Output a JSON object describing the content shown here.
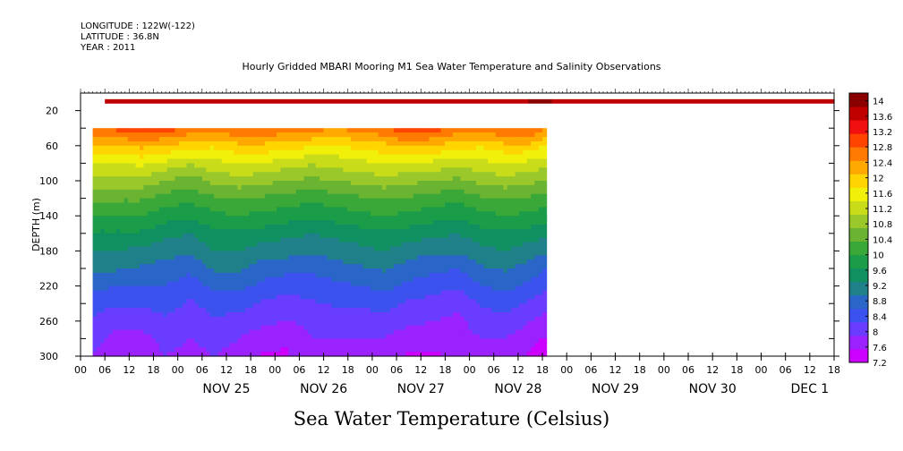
{
  "header": {
    "longitude": "LONGITUDE : 122W(-122)",
    "latitude": "LATITUDE : 36.8N",
    "year": "YEAR : 2011"
  },
  "chart_data": {
    "type": "heatmap",
    "title": "Hourly Gridded MBARI Mooring M1 Sea Water Temperature and Salinity Observations",
    "subtitle": "Sea Water Temperature (Celsius)",
    "ylabel": "DEPTH (m)",
    "ylim": [
      300,
      0
    ],
    "y_reversed": true,
    "y_ticks": [
      20,
      60,
      100,
      140,
      180,
      220,
      260,
      300
    ],
    "x_range": [
      "2011-11-24T00:00",
      "2011-12-01T18:00"
    ],
    "x_hour_ticks": [
      "00",
      "06",
      "12",
      "18",
      "00",
      "06",
      "12",
      "18",
      "00",
      "06",
      "12",
      "18",
      "00",
      "06",
      "12",
      "18",
      "00",
      "06",
      "12",
      "18",
      "00",
      "06",
      "12",
      "18",
      "00",
      "06",
      "12",
      "18",
      "00",
      "06",
      "12",
      "18"
    ],
    "x_day_labels": [
      "NOV 25",
      "NOV 26",
      "NOV 27",
      "NOV 28",
      "NOV 29",
      "NOV 30",
      "DEC 1"
    ],
    "data_time_range": [
      "2011-11-24T03:00",
      "2011-11-28T19:00"
    ],
    "surface_time_range": [
      "2011-11-24T06:00",
      "2011-12-01T18:00"
    ],
    "surface_depth": 10,
    "surface_values": [
      13.7,
      13.8,
      13.6,
      13.6,
      13.7,
      13.6,
      13.6,
      13.7,
      13.6,
      13.6,
      13.8,
      13.7,
      13.6,
      13.6,
      13.7,
      13.6,
      13.7,
      13.7,
      13.9,
      13.8,
      13.7,
      13.6,
      13.6,
      13.6,
      13.7,
      13.6,
      13.7,
      13.6,
      13.6,
      13.7,
      13.8
    ],
    "depths": [
      40,
      60,
      80,
      100,
      120,
      140,
      160,
      180,
      200,
      220,
      240,
      260,
      280,
      300
    ],
    "profile_times_hours_from_start": [
      3,
      9,
      15,
      21,
      27,
      33,
      39,
      45,
      51,
      57,
      63,
      69,
      75,
      81,
      87,
      93,
      99,
      105,
      111,
      115
    ],
    "temperature": [
      [
        12.8,
        12.9,
        13.0,
        13.0,
        12.7,
        12.6,
        12.9,
        12.8,
        12.7,
        12.6,
        12.5,
        12.6,
        12.8,
        13.1,
        13.0,
        12.7,
        12.6,
        12.9,
        12.8,
        12.5
      ],
      [
        12.0,
        12.1,
        12.2,
        12.1,
        11.9,
        11.8,
        12.0,
        12.0,
        11.9,
        11.8,
        11.7,
        11.9,
        12.0,
        12.2,
        12.1,
        11.9,
        11.8,
        12.0,
        12.0,
        11.7
      ],
      [
        11.4,
        11.4,
        11.5,
        11.3,
        11.1,
        11.3,
        11.4,
        11.4,
        11.2,
        11.1,
        11.2,
        11.3,
        11.4,
        11.4,
        11.3,
        11.2,
        11.3,
        11.4,
        11.3,
        11.2
      ],
      [
        10.9,
        10.9,
        10.9,
        10.7,
        10.5,
        10.8,
        10.9,
        10.8,
        10.7,
        10.6,
        10.7,
        10.8,
        10.9,
        10.8,
        10.7,
        10.6,
        10.8,
        10.9,
        10.8,
        10.7
      ],
      [
        10.4,
        10.4,
        10.4,
        10.2,
        10.1,
        10.3,
        10.4,
        10.3,
        10.2,
        10.1,
        10.2,
        10.3,
        10.4,
        10.3,
        10.2,
        10.1,
        10.3,
        10.4,
        10.3,
        10.2
      ],
      [
        10.0,
        10.0,
        10.0,
        9.8,
        9.7,
        9.9,
        10.0,
        9.9,
        9.8,
        9.7,
        9.8,
        9.9,
        10.0,
        9.9,
        9.8,
        9.7,
        9.9,
        10.0,
        9.9,
        9.8
      ],
      [
        9.6,
        9.6,
        9.6,
        9.4,
        9.3,
        9.6,
        9.6,
        9.5,
        9.4,
        9.3,
        9.4,
        9.5,
        9.6,
        9.5,
        9.4,
        9.3,
        9.5,
        9.6,
        9.5,
        9.4
      ],
      [
        9.3,
        9.3,
        9.2,
        9.1,
        9.0,
        9.3,
        9.3,
        9.1,
        9.1,
        9.0,
        9.1,
        9.2,
        9.3,
        9.1,
        9.0,
        9.0,
        9.2,
        9.3,
        9.1,
        9.0
      ],
      [
        9.0,
        9.0,
        8.9,
        8.8,
        8.7,
        9.0,
        9.0,
        8.8,
        8.7,
        8.7,
        8.8,
        8.9,
        9.0,
        8.8,
        8.7,
        8.6,
        8.9,
        9.0,
        8.8,
        8.6
      ],
      [
        8.7,
        8.6,
        8.6,
        8.6,
        8.4,
        8.7,
        8.7,
        8.5,
        8.4,
        8.4,
        8.5,
        8.6,
        8.7,
        8.5,
        8.4,
        8.3,
        8.6,
        8.7,
        8.5,
        8.3
      ],
      [
        8.4,
        8.3,
        8.3,
        8.4,
        8.2,
        8.4,
        8.4,
        8.2,
        8.1,
        8.2,
        8.3,
        8.3,
        8.4,
        8.2,
        8.1,
        8.0,
        8.3,
        8.4,
        8.2,
        8.0
      ],
      [
        8.2,
        8.0,
        8.0,
        8.2,
        8.0,
        8.2,
        8.1,
        8.0,
        7.9,
        8.0,
        8.1,
        8.1,
        8.1,
        8.0,
        7.9,
        7.8,
        8.1,
        8.1,
        7.9,
        7.8
      ],
      [
        8.0,
        7.8,
        7.8,
        8.0,
        7.9,
        8.0,
        7.9,
        7.7,
        7.6,
        7.9,
        7.9,
        7.9,
        7.9,
        7.7,
        7.7,
        7.7,
        7.9,
        7.9,
        7.7,
        7.5
      ],
      [
        7.9,
        7.6,
        7.7,
        7.9,
        7.8,
        7.9,
        7.8,
        7.5,
        7.5,
        7.8,
        7.8,
        7.8,
        7.8,
        7.5,
        7.5,
        7.6,
        7.8,
        7.8,
        7.5,
        7.3
      ]
    ],
    "colorbar_labels": [
      "14",
      "13.6",
      "13.2",
      "12.8",
      "12.4",
      "12",
      "11.6",
      "11.2",
      "10.8",
      "10.4",
      "10",
      "9.6",
      "9.2",
      "8.8",
      "8.4",
      "8",
      "7.6",
      "7.2"
    ],
    "colorbar_range": [
      7.2,
      14.2
    ],
    "colorscale": [
      "#cc00ff",
      "#9a22ff",
      "#6a3cff",
      "#3c52ee",
      "#2a66c8",
      "#20808a",
      "#109060",
      "#1a9c48",
      "#3aa838",
      "#6ab432",
      "#9ac82a",
      "#c8dc1a",
      "#f0f00a",
      "#ffd400",
      "#ffa800",
      "#ff7a00",
      "#ff4400",
      "#f01010",
      "#c00000",
      "#8a0000"
    ],
    "grid": false
  }
}
